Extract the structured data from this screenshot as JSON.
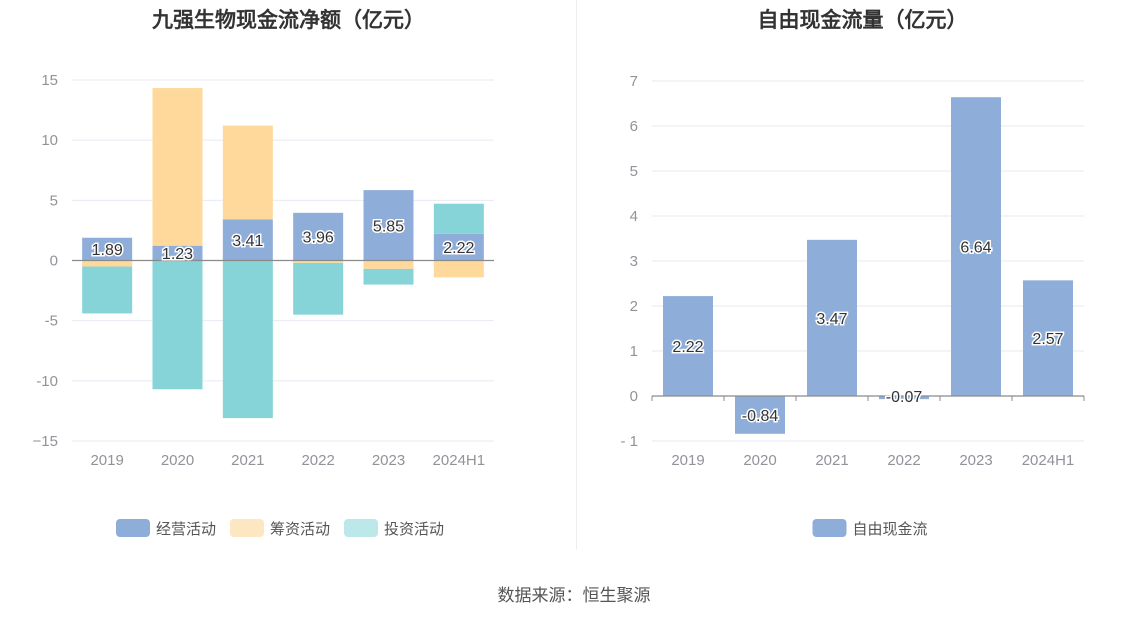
{
  "colors": {
    "operating": "#8fadd9",
    "financing": "#fed99b",
    "investing": "#86d4d8",
    "free_cash_flow": "#8fadd9",
    "grid": "#e8eaf2",
    "axis_text": "#909399",
    "zero_line": "#8a8a8a"
  },
  "source": "数据来源：恒生聚源",
  "chart_data": [
    {
      "type": "bar",
      "stacked": true,
      "title": "九强生物现金流净额（亿元）",
      "categories": [
        "2019",
        "2020",
        "2021",
        "2022",
        "2023",
        "2024H1"
      ],
      "ylim": [
        -15,
        15
      ],
      "yticks": [
        15,
        10,
        5,
        0,
        -5,
        -10,
        -15
      ],
      "ytick_labels": [
        "15",
        "10",
        "5",
        "0",
        "-5",
        "-10",
        "−15"
      ],
      "grid": true,
      "legend_position": "bottom",
      "series": [
        {
          "name": "经营活动",
          "color": "#8fadd9",
          "values": [
            1.89,
            1.23,
            3.41,
            3.96,
            5.85,
            2.22
          ],
          "labels": [
            "1.89",
            "1.23",
            "3.41",
            "3.96",
            "5.85",
            "2.22"
          ]
        },
        {
          "name": "筹资活动",
          "color": "#fed99b",
          "legend_color": "#fde6c2",
          "values": [
            -0.5,
            13.1,
            7.8,
            -0.2,
            -0.7,
            -1.4
          ]
        },
        {
          "name": "投资活动",
          "color": "#86d4d8",
          "legend_color": "#bde8ea",
          "values": [
            -3.9,
            -10.7,
            -13.1,
            -4.3,
            -1.3,
            2.5
          ]
        }
      ]
    },
    {
      "type": "bar",
      "title": "自由现金流量（亿元）",
      "categories": [
        "2019",
        "2020",
        "2021",
        "2022",
        "2023",
        "2024H1"
      ],
      "ylim": [
        -1,
        7
      ],
      "yticks": [
        7,
        6,
        5,
        4,
        3,
        2,
        1,
        0,
        -1
      ],
      "ytick_labels": [
        "7",
        "6",
        "5",
        "4",
        "3",
        "2",
        "1",
        "0",
        "- 1"
      ],
      "grid": true,
      "legend_position": "bottom",
      "series": [
        {
          "name": "自由现金流",
          "color": "#8fadd9",
          "values": [
            2.22,
            -0.84,
            3.47,
            -0.07,
            6.64,
            2.57
          ],
          "labels": [
            "2.22",
            "-0.84",
            "3.47",
            "-0.07",
            "6.64",
            "2.57"
          ]
        }
      ]
    }
  ]
}
